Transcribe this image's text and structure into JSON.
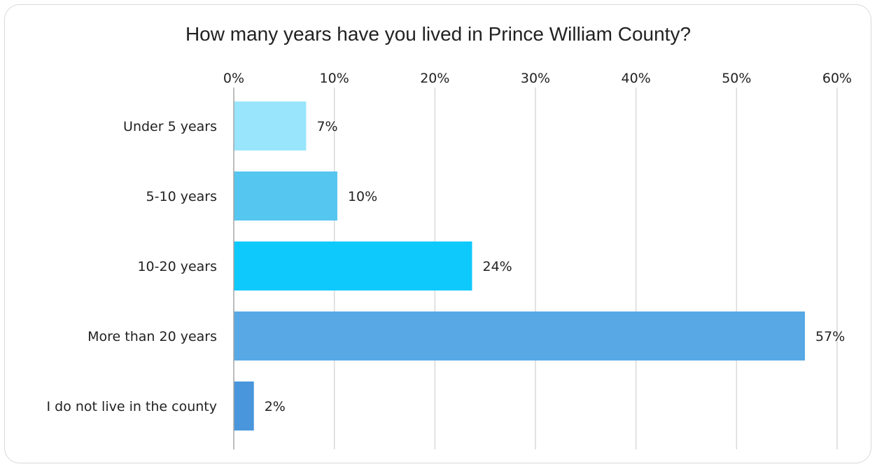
{
  "chart_data": {
    "type": "bar",
    "orientation": "horizontal",
    "title": "How many years have you lived in Prince William County?",
    "categories": [
      "Under 5 years",
      "5-10 years",
      "10-20 years",
      "More than 20 years",
      "I do not live in the county"
    ],
    "values": [
      7.2,
      10.3,
      23.7,
      56.8,
      2.0
    ],
    "value_labels": [
      "7%",
      "10%",
      "24%",
      "57%",
      "2%"
    ],
    "bar_colors": [
      "#99e5fb",
      "#55c6ef",
      "#0dc9fc",
      "#57a8e5",
      "#4a96dc"
    ],
    "xlim": [
      0,
      60
    ],
    "x_ticks": [
      0,
      10,
      20,
      30,
      40,
      50,
      60
    ],
    "x_tick_labels": [
      "0%",
      "10%",
      "20%",
      "30%",
      "40%",
      "50%",
      "60%"
    ],
    "x_axis_position": "top",
    "grid": true,
    "legend": "none"
  }
}
